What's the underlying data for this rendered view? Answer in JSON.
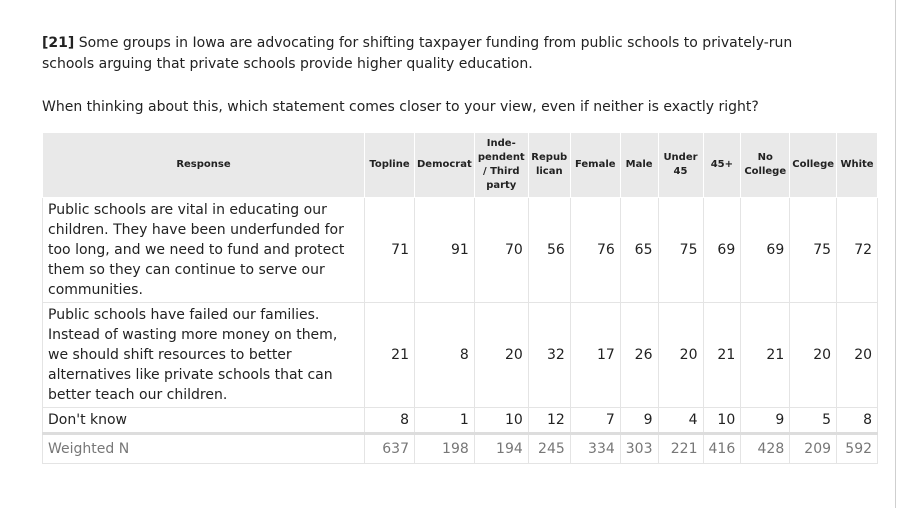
{
  "question": {
    "number": "[21]",
    "text": "Some groups in Iowa are advocating for shifting taxpayer funding from public schools to privately-run schools arguing that private schools provide higher quality education.",
    "prompt": "When thinking about this, which statement comes closer to your view, even if neither is exactly right?"
  },
  "table": {
    "header": [
      "Response",
      "Topline",
      "Democrat",
      "Inde-\npendent\n/ Third\nparty",
      "Repub\nlican",
      "Female",
      "Male",
      "Under\n45",
      "45+",
      "No\nCollege",
      "College",
      "White"
    ],
    "rows": [
      [
        "Public schools are vital in educating our children. They have been underfunded for too long, and we need to fund and protect them so they can continue to serve our communities.",
        71,
        91,
        70,
        56,
        76,
        65,
        75,
        69,
        69,
        75,
        72
      ],
      [
        "Public schools have failed our families. Instead of wasting more money on them, we should shift resources to better alternatives like private schools that can better teach our children.",
        21,
        8,
        20,
        32,
        17,
        26,
        20,
        21,
        21,
        20,
        20
      ],
      [
        "Don't know",
        8,
        1,
        10,
        12,
        7,
        9,
        4,
        10,
        9,
        5,
        8
      ],
      [
        "Weighted N",
        637,
        198,
        194,
        245,
        334,
        303,
        221,
        416,
        428,
        209,
        592
      ]
    ]
  }
}
